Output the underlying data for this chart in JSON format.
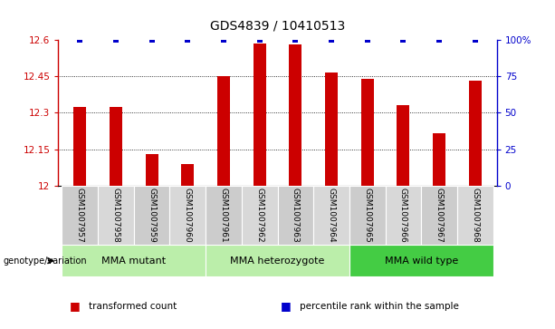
{
  "title": "GDS4839 / 10410513",
  "samples": [
    "GSM1007957",
    "GSM1007958",
    "GSM1007959",
    "GSM1007960",
    "GSM1007961",
    "GSM1007962",
    "GSM1007963",
    "GSM1007964",
    "GSM1007965",
    "GSM1007966",
    "GSM1007967",
    "GSM1007968"
  ],
  "bar_values": [
    12.325,
    12.325,
    12.13,
    12.09,
    12.45,
    12.585,
    12.578,
    12.465,
    12.44,
    12.33,
    12.215,
    12.43
  ],
  "bar_color": "#cc0000",
  "percentile_color": "#0000cc",
  "ylim": [
    12.0,
    12.6
  ],
  "yticks": [
    12.0,
    12.15,
    12.3,
    12.45,
    12.6
  ],
  "ytick_labels": [
    "12",
    "12.15",
    "12.3",
    "12.45",
    "12.6"
  ],
  "right_yticks": [
    0,
    25,
    50,
    75,
    100
  ],
  "right_ytick_labels": [
    "0",
    "25",
    "50",
    "75",
    "100%"
  ],
  "gridlines": [
    12.15,
    12.3,
    12.45
  ],
  "group_configs": [
    {
      "label": "MMA mutant",
      "start": 0,
      "end": 3,
      "color": "#bbeeaa"
    },
    {
      "label": "MMA heterozygote",
      "start": 4,
      "end": 7,
      "color": "#bbeeaa"
    },
    {
      "label": "MMA wild type",
      "start": 8,
      "end": 11,
      "color": "#44cc44"
    }
  ],
  "genotype_label": "genotype/variation",
  "legend_items": [
    {
      "label": "transformed count",
      "color": "#cc0000"
    },
    {
      "label": "percentile rank within the sample",
      "color": "#0000cc"
    }
  ],
  "title_fontsize": 10,
  "tick_fontsize": 7.5,
  "sample_fontsize": 6.5,
  "group_fontsize": 8,
  "legend_fontsize": 7.5,
  "bar_width": 0.35,
  "sample_bg_colors": [
    "#cccccc",
    "#d8d8d8"
  ]
}
